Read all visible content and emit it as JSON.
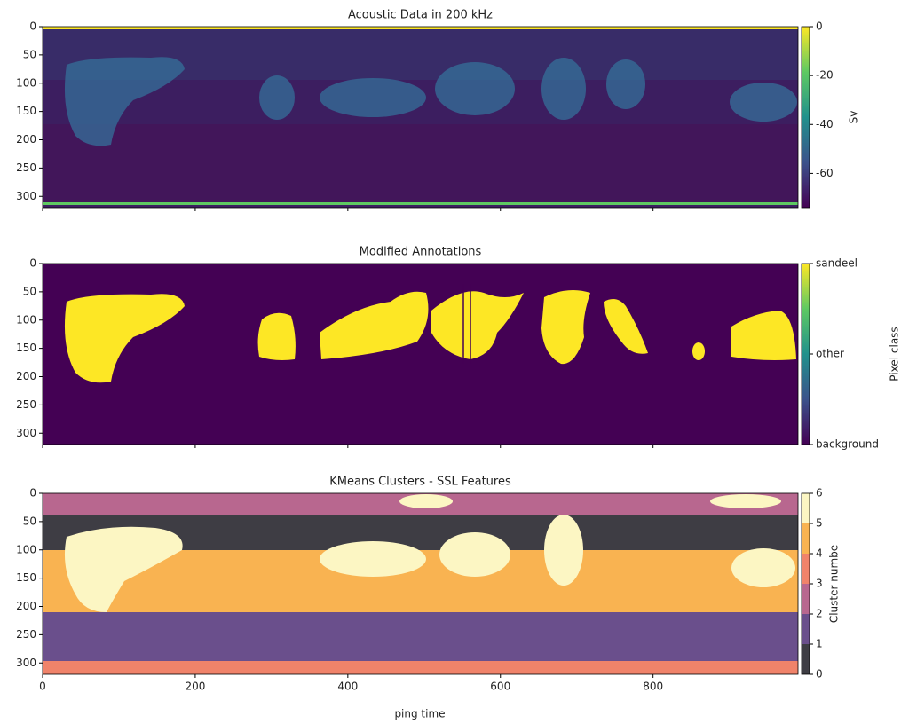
{
  "chart_data": [
    {
      "type": "heatmap",
      "title": "Acoustic Data in 200 kHz",
      "xlim": [
        0,
        990
      ],
      "xticks": [
        0,
        200,
        400,
        600,
        800
      ],
      "ylim": [
        320,
        0
      ],
      "yticks": [
        0,
        50,
        100,
        150,
        200,
        250,
        300
      ],
      "colorbar": {
        "label": "Sv",
        "lim": [
          -74,
          0
        ],
        "ticks": [
          0,
          -20,
          -40,
          -60
        ],
        "colormap": [
          "#440154",
          "#3b528b",
          "#21918c",
          "#5ec962",
          "#fde725"
        ]
      }
    },
    {
      "type": "heatmap",
      "title": "Modified Annotations",
      "xlim": [
        0,
        990
      ],
      "xticks": [
        0,
        200,
        400,
        600,
        800
      ],
      "ylim": [
        320,
        0
      ],
      "yticks": [
        0,
        50,
        100,
        150,
        200,
        250,
        300
      ],
      "colorbar": {
        "label": "Pixel class",
        "lim": [
          0,
          2
        ],
        "ticks": [
          {
            "value": 2,
            "label": "sandeel"
          },
          {
            "value": 1,
            "label": "other"
          },
          {
            "value": 0,
            "label": "background"
          }
        ],
        "colormap": [
          "#440154",
          "#3b528b",
          "#21918c",
          "#5ec962",
          "#fde725"
        ]
      }
    },
    {
      "type": "heatmap",
      "title": "KMeans Clusters - SSL Features",
      "xlabel": "ping time",
      "xlim": [
        0,
        990
      ],
      "xticks": [
        0,
        200,
        400,
        600,
        800
      ],
      "ylim": [
        320,
        0
      ],
      "yticks": [
        0,
        50,
        100,
        150,
        200,
        250,
        300
      ],
      "colorbar": {
        "label": "Cluster numbe",
        "lim": [
          0,
          6
        ],
        "ticks": [
          0,
          1,
          2,
          3,
          4,
          5,
          6
        ],
        "colors": [
          "#3e3d44",
          "#6a4f8c",
          "#b8678f",
          "#f0836a",
          "#f9b351",
          "#fcf6c3"
        ]
      }
    }
  ]
}
